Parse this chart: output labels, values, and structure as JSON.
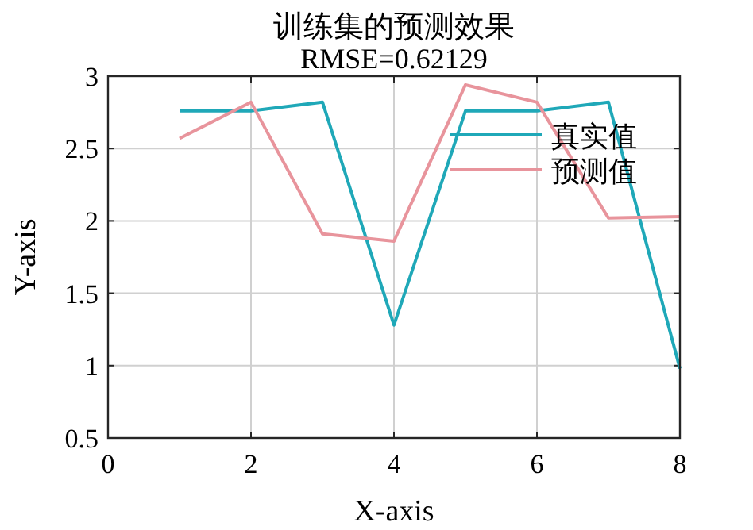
{
  "chart_data": {
    "type": "line",
    "title": "训练集的预测效果",
    "subtitle": "RMSE=0.62129",
    "xlabel": "X-axis",
    "ylabel": "Y-axis",
    "x": [
      1,
      2,
      3,
      4,
      5,
      6,
      7,
      8
    ],
    "series": [
      {
        "name": "真实值",
        "color": "#1fa8b8",
        "values": [
          2.76,
          2.76,
          2.82,
          1.28,
          2.76,
          2.76,
          2.82,
          0.98
        ]
      },
      {
        "name": "预测值",
        "color": "#e8949c",
        "values": [
          2.57,
          2.82,
          1.91,
          1.86,
          2.94,
          2.82,
          2.02,
          2.03
        ]
      }
    ],
    "xlim": [
      0,
      8
    ],
    "xticks": [
      0,
      2,
      4,
      6,
      8
    ],
    "ylim": [
      0.5,
      3
    ],
    "yticks": [
      0.5,
      1,
      1.5,
      2,
      2.5,
      3
    ],
    "grid": true,
    "legend": "top right",
    "line_style": "solid"
  }
}
